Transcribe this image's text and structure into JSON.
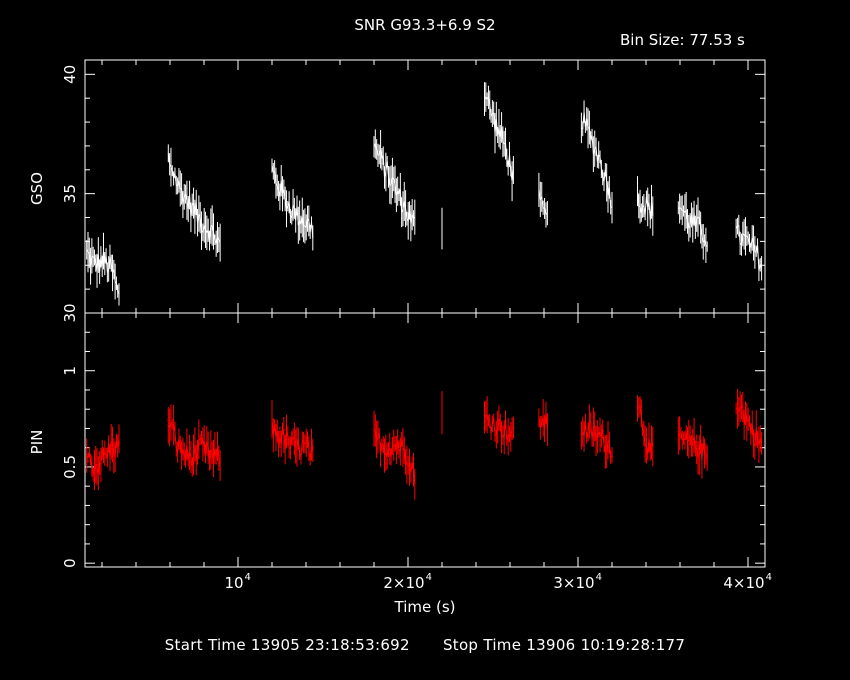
{
  "title": "SNR G93.3+6.9 S2",
  "bin_size": "Bin Size: 77.53 s",
  "footer": {
    "start": "Start Time 13905 23:18:53:692",
    "stop": "Stop Time 13906 10:19:28:177"
  },
  "chart_data": [
    {
      "type": "line",
      "panel": "GSO",
      "ylabel": "GSO",
      "ylim": [
        30,
        40.6
      ],
      "xlim": [
        1000,
        41000
      ],
      "yticks_major": [
        30,
        35,
        40
      ],
      "ytick_labels": [
        "30",
        "35",
        "40"
      ],
      "color": "#ffffff",
      "segments": [
        {
          "x": [
            1100,
            1600,
            2100,
            2600,
            3000
          ],
          "y": [
            32.5,
            32.0,
            32.2,
            31.8,
            30.6
          ]
        },
        {
          "x": [
            5900,
            6500,
            7200,
            7900,
            8600,
            8950
          ],
          "y": [
            36.5,
            35.3,
            34.5,
            33.8,
            33.3,
            32.8
          ]
        },
        {
          "x": [
            12000,
            12600,
            13300,
            14000,
            14400
          ],
          "y": [
            36.0,
            35.0,
            34.2,
            33.8,
            33.5
          ]
        },
        {
          "x": [
            18000,
            18700,
            19400,
            20100,
            20400
          ],
          "y": [
            37.0,
            36.0,
            35.0,
            34.0,
            33.7
          ]
        },
        {
          "x": [
            22000
          ],
          "y": [
            33.5
          ]
        },
        {
          "x": [
            24500,
            25100,
            25700,
            26200
          ],
          "y": [
            39.2,
            38.0,
            37.0,
            35.7
          ]
        },
        {
          "x": [
            27700,
            28200
          ],
          "y": [
            34.7,
            33.8
          ]
        },
        {
          "x": [
            30200,
            30800,
            31400,
            32000
          ],
          "y": [
            38.2,
            37.3,
            36.2,
            34.7
          ]
        },
        {
          "x": [
            33500,
            34000,
            34400
          ],
          "y": [
            34.8,
            34.5,
            34.2
          ]
        },
        {
          "x": [
            35900,
            36500,
            37100,
            37600
          ],
          "y": [
            34.6,
            33.9,
            33.6,
            33.1
          ]
        },
        {
          "x": [
            39300,
            39900,
            40500,
            40800
          ],
          "y": [
            33.3,
            33.0,
            32.5,
            32.0
          ]
        }
      ]
    },
    {
      "type": "line",
      "panel": "PIN",
      "ylabel": "PIN",
      "ylim": [
        -0.02,
        1.3
      ],
      "xlim": [
        1000,
        41000
      ],
      "yticks_major": [
        0,
        0.5,
        1
      ],
      "ytick_labels": [
        "0",
        "0.5",
        "1"
      ],
      "color": "#ff0000",
      "xticks": [
        10000,
        20000,
        30000,
        40000
      ],
      "xtick_labels": [
        "10",
        "2×10",
        "3×10",
        "4×10"
      ],
      "xtick_exp": "4",
      "xlabel": "Time (s)",
      "segments": [
        {
          "x": [
            1100,
            1600,
            2100,
            2600,
            3000
          ],
          "y": [
            0.55,
            0.5,
            0.55,
            0.6,
            0.6
          ]
        },
        {
          "x": [
            5900,
            6500,
            7200,
            7900,
            8600,
            8950
          ],
          "y": [
            0.75,
            0.6,
            0.55,
            0.6,
            0.55,
            0.55
          ]
        },
        {
          "x": [
            12000,
            12600,
            13300,
            14000,
            14400
          ],
          "y": [
            0.7,
            0.65,
            0.6,
            0.6,
            0.55
          ]
        },
        {
          "x": [
            18000,
            18700,
            19400,
            20100,
            20400
          ],
          "y": [
            0.65,
            0.6,
            0.62,
            0.55,
            0.45
          ]
        },
        {
          "x": [
            22000
          ],
          "y": [
            0.8
          ]
        },
        {
          "x": [
            24500,
            25100,
            25700,
            26200
          ],
          "y": [
            0.75,
            0.72,
            0.7,
            0.65
          ]
        },
        {
          "x": [
            27700,
            28200
          ],
          "y": [
            0.75,
            0.72
          ]
        },
        {
          "x": [
            30200,
            30800,
            31400,
            32000
          ],
          "y": [
            0.7,
            0.68,
            0.65,
            0.6
          ]
        },
        {
          "x": [
            33500,
            34000,
            34400
          ],
          "y": [
            0.85,
            0.65,
            0.55
          ]
        },
        {
          "x": [
            35900,
            36500,
            37100,
            37600
          ],
          "y": [
            0.65,
            0.62,
            0.6,
            0.55
          ]
        },
        {
          "x": [
            39300,
            39900,
            40500,
            40800
          ],
          "y": [
            0.85,
            0.75,
            0.65,
            0.62
          ]
        }
      ]
    }
  ]
}
